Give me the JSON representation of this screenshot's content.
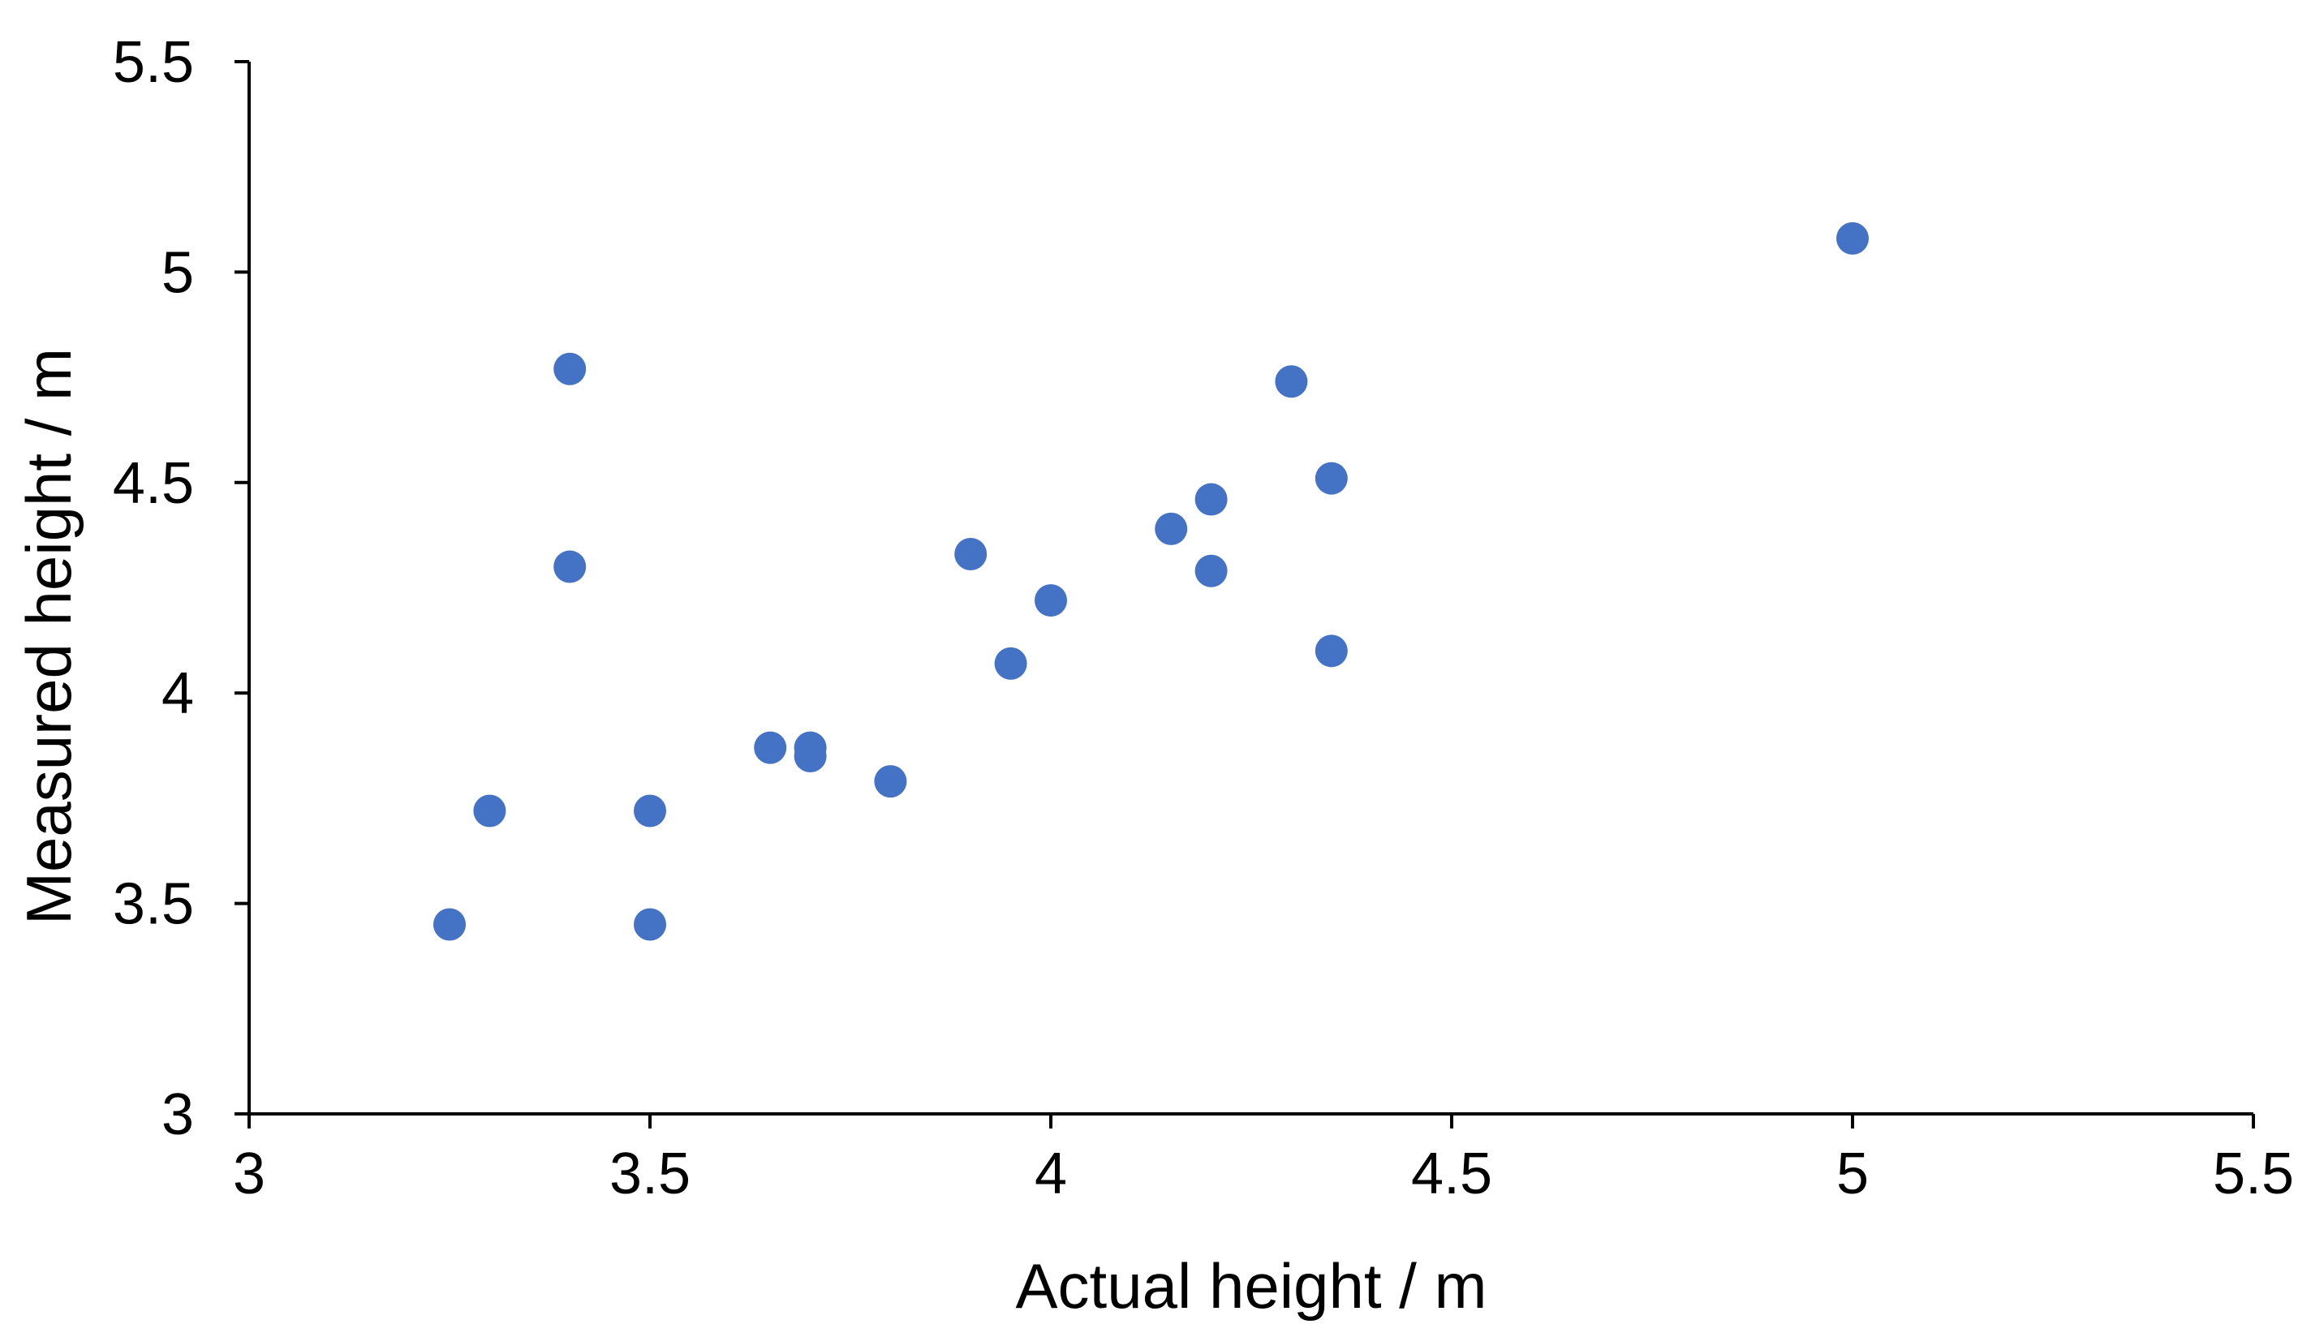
{
  "chart_data": {
    "type": "scatter",
    "title": "",
    "xlabel": "Actual height  / m",
    "ylabel": "Measured height  / m",
    "xlim": [
      3,
      5.5
    ],
    "ylim": [
      3,
      5.5
    ],
    "x_ticks": [
      "3",
      "3.5",
      "4",
      "4.5",
      "5",
      "5.5"
    ],
    "y_ticks": [
      "3",
      "3.5",
      "4",
      "4.5",
      "5",
      "5.5"
    ],
    "grid": false,
    "legend": "none",
    "marker_color": "#4472C4",
    "series": [
      {
        "points": [
          {
            "x": 3.25,
            "y": 3.45
          },
          {
            "x": 3.3,
            "y": 3.72
          },
          {
            "x": 3.4,
            "y": 4.77
          },
          {
            "x": 3.4,
            "y": 4.3
          },
          {
            "x": 3.5,
            "y": 3.72
          },
          {
            "x": 3.5,
            "y": 3.45
          },
          {
            "x": 3.65,
            "y": 3.87
          },
          {
            "x": 3.7,
            "y": 3.87
          },
          {
            "x": 3.7,
            "y": 3.85
          },
          {
            "x": 3.8,
            "y": 3.79
          },
          {
            "x": 3.9,
            "y": 4.33
          },
          {
            "x": 3.95,
            "y": 4.07
          },
          {
            "x": 4.0,
            "y": 4.22
          },
          {
            "x": 4.15,
            "y": 4.39
          },
          {
            "x": 4.2,
            "y": 4.46
          },
          {
            "x": 4.2,
            "y": 4.29
          },
          {
            "x": 4.3,
            "y": 4.74
          },
          {
            "x": 4.35,
            "y": 4.51
          },
          {
            "x": 4.35,
            "y": 4.1
          },
          {
            "x": 5.0,
            "y": 5.08
          }
        ]
      }
    ]
  }
}
